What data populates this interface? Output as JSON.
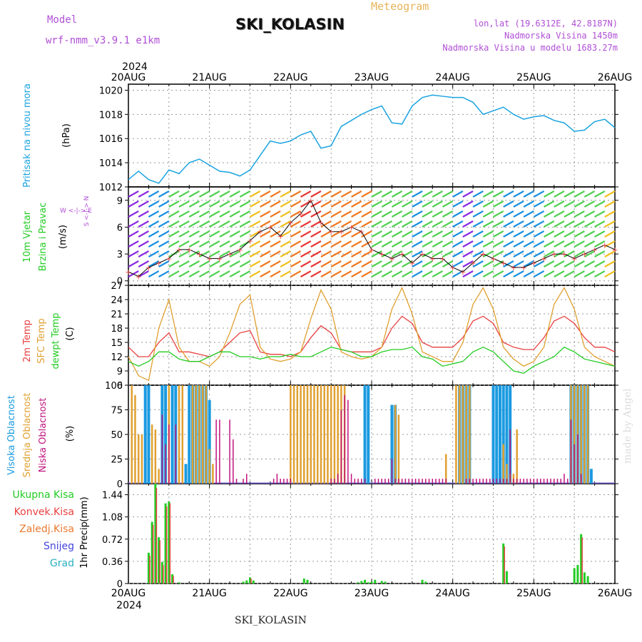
{
  "header": {
    "model_label": "Model",
    "model_name": "wrf-nmm_v3.9.1 e1km",
    "station": "SKI_KOLASIN",
    "meteogram_label": "Meteogram",
    "lonlat": "lon,lat (19.6312E, 42.8187N)",
    "elevation": "Nadmorska Visina 1450m",
    "model_elevation": "Nadmorska Visina u modelu 1683.27m"
  },
  "footer": {
    "station": "SKI_KOLASIN",
    "made_by": "made by Angel"
  },
  "colors": {
    "pressure": "#1aa3e0",
    "wind_label": "#22cc22",
    "temp2m": "#e84040",
    "sfc": "#e0a030",
    "dewpt": "#22cc22",
    "high_cloud": "#1a9ae0",
    "mid_cloud": "#e0a030",
    "low_cloud": "#c0147f",
    "total_precip": "#22cc22",
    "conv_precip": "#e84040",
    "frz_precip": "#e87a30",
    "snow": "#4444dd",
    "graupel": "#2ab0c0"
  },
  "chart_data": [
    {
      "type": "line",
      "id": "pressure",
      "ylabel_1": "Pritisak na nivou mora",
      "ylabel_2": "(hPa)",
      "ylim": [
        1012,
        1020.5
      ],
      "yticks": [
        "1012",
        "1014",
        "1016",
        "1018",
        "1020"
      ],
      "xlim": [
        0,
        144
      ],
      "xticks": [
        "20AUG",
        "21AUG",
        "22AUG",
        "23AUG",
        "24AUG",
        "25AUG",
        "26AUG"
      ],
      "x_top_year": "2024",
      "series": [
        {
          "x": [
            0,
            3,
            6,
            9,
            12,
            15,
            18,
            21,
            24,
            27,
            30,
            33,
            36,
            39,
            42,
            45,
            48,
            51,
            54,
            57,
            60,
            63,
            66,
            69,
            72,
            75,
            78,
            81,
            84,
            87,
            90,
            93,
            96,
            99,
            102,
            105,
            108,
            111,
            114,
            117,
            120,
            123,
            126,
            129,
            132,
            135,
            138,
            141,
            144
          ],
          "values": [
            1012.6,
            1013.3,
            1012.6,
            1012.3,
            1013.4,
            1013.1,
            1014.0,
            1014.3,
            1013.8,
            1013.3,
            1013.2,
            1012.9,
            1013.4,
            1014.6,
            1015.8,
            1015.6,
            1015.8,
            1016.3,
            1016.6,
            1015.2,
            1015.4,
            1017.0,
            1017.5,
            1018.0,
            1018.4,
            1018.7,
            1017.3,
            1017.2,
            1018.7,
            1019.4,
            1019.6,
            1019.5,
            1019.4,
            1019.4,
            1019.0,
            1018.0,
            1018.3,
            1018.6,
            1018.0,
            1017.6,
            1017.8,
            1017.9,
            1017.5,
            1017.3,
            1016.6,
            1016.7,
            1017.4,
            1017.6,
            1016.9
          ]
        }
      ]
    },
    {
      "type": "scatter",
      "id": "wind",
      "ylabel_1": "10m Vjetar",
      "ylabel_2": "Brzina i Pravac",
      "ylabel_3": "(m/s)",
      "compass": "W <-|-> E",
      "compass_vert": "S <-|-> N",
      "ylim": [
        -0.5,
        10.5
      ],
      "yticks": [
        "0",
        "3",
        "6",
        "9"
      ],
      "series": [
        {
          "name": "speed",
          "x": [
            0,
            3,
            6,
            9,
            12,
            15,
            18,
            21,
            24,
            27,
            30,
            33,
            36,
            39,
            42,
            45,
            48,
            51,
            54,
            57,
            60,
            63,
            66,
            69,
            72,
            75,
            78,
            81,
            84,
            87,
            90,
            93,
            96,
            99,
            102,
            105,
            108,
            111,
            114,
            117,
            120,
            123,
            126,
            129,
            132,
            135,
            138,
            141,
            144
          ],
          "values": [
            1.0,
            0.5,
            1.5,
            2.0,
            2.5,
            3.5,
            3.5,
            3.0,
            2.5,
            2.5,
            3.0,
            3.5,
            4.5,
            5.5,
            6.0,
            5.0,
            6.5,
            7.5,
            9.0,
            6.5,
            5.5,
            5.5,
            6.0,
            5.5,
            3.5,
            3.0,
            2.5,
            3.0,
            2.0,
            3.0,
            2.5,
            2.5,
            1.5,
            1.0,
            2.0,
            3.0,
            2.5,
            2.0,
            1.5,
            1.5,
            2.0,
            2.5,
            3.0,
            3.0,
            2.5,
            3.0,
            3.5,
            4.0,
            3.5
          ]
        }
      ]
    },
    {
      "type": "line",
      "id": "temperature",
      "ylabel_1": "2m Temp",
      "ylabel_2": "SFC Temp",
      "ylabel_3": "dewpt Temp",
      "ylabel_4": "(C)",
      "ylim": [
        6,
        27
      ],
      "yticks": [
        "6",
        "9",
        "12",
        "15",
        "18",
        "21",
        "24",
        "27"
      ],
      "series": [
        {
          "name": "2m Temp",
          "x": [
            0,
            3,
            6,
            9,
            12,
            15,
            18,
            21,
            24,
            27,
            30,
            33,
            36,
            39,
            42,
            45,
            48,
            51,
            54,
            57,
            60,
            63,
            66,
            69,
            72,
            75,
            78,
            81,
            84,
            87,
            90,
            93,
            96,
            99,
            102,
            105,
            108,
            111,
            114,
            117,
            120,
            123,
            126,
            129,
            132,
            135,
            138,
            141,
            144
          ],
          "values": [
            14,
            12,
            12,
            15,
            17,
            13,
            13,
            12.5,
            12,
            13,
            15,
            17,
            17.5,
            13,
            12.5,
            12.5,
            12,
            13,
            16,
            18.5,
            17,
            13.5,
            13,
            13,
            13,
            14,
            18,
            20.5,
            19,
            15,
            14,
            14,
            14,
            16,
            19.5,
            20.5,
            19,
            15,
            14,
            13.5,
            13.5,
            16,
            19.5,
            20.5,
            19,
            16,
            14,
            14,
            13
          ]
        },
        {
          "name": "SFC Temp",
          "x": [
            0,
            3,
            6,
            9,
            12,
            15,
            18,
            21,
            24,
            27,
            30,
            33,
            36,
            39,
            42,
            45,
            48,
            51,
            54,
            57,
            60,
            63,
            66,
            69,
            72,
            75,
            78,
            81,
            84,
            87,
            90,
            93,
            96,
            99,
            102,
            105,
            108,
            111,
            114,
            117,
            120,
            123,
            126,
            129,
            132,
            135,
            138,
            141,
            144
          ],
          "values": [
            12,
            8,
            7,
            18,
            24,
            14,
            11,
            11,
            10,
            12,
            17,
            23,
            25,
            14,
            11.5,
            11,
            11.5,
            13,
            20,
            26,
            22,
            13,
            12,
            11.5,
            12,
            14,
            22,
            26.5,
            21,
            13,
            12,
            11,
            11,
            15,
            23,
            26.5,
            22,
            14,
            11.5,
            10,
            11,
            14,
            23,
            26.5,
            22,
            14,
            12,
            11,
            10
          ]
        },
        {
          "name": "dewpt Temp",
          "x": [
            0,
            3,
            6,
            9,
            12,
            15,
            18,
            21,
            24,
            27,
            30,
            33,
            36,
            39,
            42,
            45,
            48,
            51,
            54,
            57,
            60,
            63,
            66,
            69,
            72,
            75,
            78,
            81,
            84,
            87,
            90,
            93,
            96,
            99,
            102,
            105,
            108,
            111,
            114,
            117,
            120,
            123,
            126,
            129,
            132,
            135,
            138,
            141,
            144
          ],
          "values": [
            11,
            10,
            11,
            13,
            13,
            11.5,
            11,
            11,
            12,
            13,
            13,
            12,
            12,
            11.5,
            12,
            12,
            12.5,
            12,
            12,
            13,
            14,
            13.5,
            13,
            12,
            12,
            13,
            13.5,
            13.5,
            14,
            12,
            11.5,
            10,
            10.5,
            11,
            13,
            14,
            13,
            11,
            9,
            8.5,
            10,
            11,
            12,
            14,
            13,
            11.5,
            11,
            10.5,
            10
          ]
        }
      ]
    },
    {
      "type": "bar",
      "id": "clouds",
      "ylabel_1": "Visoka Oblacnost",
      "ylabel_2": "Srednja Oblacnost",
      "ylabel_3": "Niska Oblacnost",
      "ylabel_4": "(%)",
      "ylim": [
        0,
        100
      ],
      "yticks": [
        "0",
        "25",
        "50",
        "75",
        "100"
      ],
      "series": [
        {
          "name": "Visoka Oblacnost",
          "x": [
            5,
            6,
            10,
            11,
            13,
            14,
            17,
            18,
            19,
            20,
            21,
            22,
            23,
            24,
            70,
            71,
            78,
            79,
            98,
            99,
            100,
            101,
            108,
            109,
            110,
            111,
            112,
            113,
            131,
            132,
            133,
            134,
            135,
            136,
            137
          ],
          "values": [
            100,
            100,
            100,
            100,
            100,
            100,
            20,
            100,
            100,
            100,
            100,
            100,
            100,
            85,
            100,
            100,
            80,
            80,
            100,
            100,
            100,
            100,
            100,
            100,
            100,
            100,
            100,
            100,
            100,
            100,
            100,
            100,
            100,
            100,
            15
          ]
        },
        {
          "name": "Srednja Oblacnost",
          "x": [
            1,
            2,
            3,
            4,
            7,
            8,
            9,
            12,
            15,
            16,
            19,
            20,
            21,
            22,
            23,
            24,
            25,
            48,
            49,
            50,
            51,
            52,
            53,
            54,
            55,
            56,
            57,
            58,
            59,
            60,
            61,
            62,
            63,
            64,
            79,
            80,
            94,
            97,
            98,
            99,
            100,
            101,
            111,
            112,
            113,
            114,
            115,
            131,
            132,
            133,
            134,
            135,
            136
          ],
          "values": [
            100,
            90,
            50,
            50,
            60,
            55,
            15,
            100,
            100,
            100,
            100,
            100,
            100,
            100,
            100,
            35,
            20,
            100,
            100,
            100,
            100,
            100,
            100,
            100,
            100,
            100,
            100,
            100,
            100,
            100,
            100,
            100,
            100,
            100,
            80,
            70,
            30,
            100,
            100,
            100,
            100,
            100,
            40,
            20,
            10,
            10,
            55,
            100,
            100,
            100,
            100,
            100,
            100
          ]
        },
        {
          "name": "Niska Oblacnost",
          "x": [
            10,
            11,
            12,
            14,
            26,
            27,
            30,
            31,
            32,
            34,
            35,
            43,
            44,
            45,
            46,
            47,
            48,
            60,
            61,
            62,
            63,
            64,
            65,
            66,
            67,
            68,
            69,
            70,
            73,
            74,
            75,
            76,
            77,
            78,
            79,
            80,
            81,
            82,
            83,
            84,
            85,
            86,
            87,
            88,
            89,
            90,
            91,
            92,
            93,
            94,
            100,
            101,
            102,
            103,
            104,
            105,
            106,
            107,
            108,
            109,
            110,
            111,
            112,
            113,
            114,
            115,
            116,
            117,
            118,
            119,
            120,
            121,
            122,
            123,
            124,
            125,
            126,
            127,
            128,
            129,
            130,
            131,
            132,
            133,
            134
          ],
          "values": [
            70,
            40,
            60,
            60,
            65,
            65,
            65,
            45,
            5,
            5,
            10,
            5,
            10,
            5,
            5,
            5,
            5,
            5,
            5,
            10,
            75,
            90,
            85,
            10,
            5,
            5,
            5,
            5,
            5,
            5,
            5,
            5,
            5,
            25,
            5,
            5,
            5,
            5,
            5,
            5,
            5,
            5,
            5,
            5,
            5,
            5,
            5,
            5,
            5,
            5,
            5,
            5,
            5,
            5,
            5,
            5,
            5,
            5,
            5,
            5,
            5,
            5,
            5,
            55,
            5,
            5,
            5,
            5,
            5,
            5,
            5,
            5,
            5,
            5,
            5,
            5,
            5,
            5,
            5,
            10,
            5,
            65,
            40,
            50,
            10
          ]
        }
      ]
    },
    {
      "type": "bar",
      "id": "precip",
      "ylabel_1": "1hr Precip",
      "ylabel_2": "(mm)",
      "legend": [
        "Ukupna Kisa",
        "Konvek.Kisa",
        "Zaledj.Kisa",
        "Snijeg",
        "Grad"
      ],
      "ylim": [
        0,
        1.62
      ],
      "yticks": [
        "0",
        "0.36",
        "0.72",
        "1.08",
        "1.44"
      ],
      "series": [
        {
          "name": "Ukupna Kisa",
          "x": [
            6,
            7,
            8,
            9,
            10,
            11,
            12,
            13,
            14,
            15,
            34,
            35,
            36,
            37,
            52,
            53,
            68,
            69,
            70,
            71,
            72,
            73,
            75,
            76,
            87,
            88,
            111,
            112,
            113,
            132,
            133,
            134,
            135,
            136
          ],
          "values": [
            0.5,
            1.0,
            1.65,
            0.75,
            0.35,
            1.3,
            1.33,
            0.15,
            0.0,
            0.02,
            0.03,
            0.05,
            0.1,
            0.05,
            0.08,
            0.06,
            0.02,
            0.04,
            0.06,
            0.02,
            0.03,
            0.06,
            0.04,
            0.03,
            0.06,
            0.03,
            0.65,
            0.2,
            0.0,
            0.25,
            0.3,
            0.8,
            0.18,
            0.12
          ]
        },
        {
          "name": "Konvek.Kisa",
          "x": [
            6,
            7,
            8,
            9,
            10,
            11,
            12,
            13,
            14,
            36,
            111,
            134
          ],
          "values": [
            0.45,
            0.95,
            1.55,
            0.7,
            0.3,
            1.25,
            1.3,
            0.12,
            0.0,
            0.08,
            0.6,
            0.75
          ]
        }
      ]
    }
  ]
}
